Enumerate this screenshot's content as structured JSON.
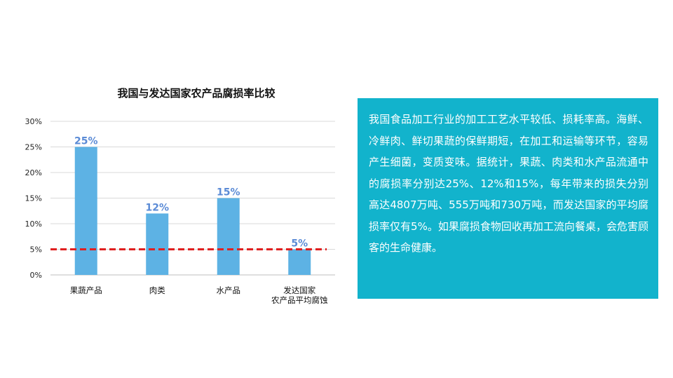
{
  "chart_data": {
    "type": "bar",
    "title": "我国与发达国家农产品腐损率比较",
    "categories": [
      [
        "果蔬产品"
      ],
      [
        "肉类"
      ],
      [
        "水产品"
      ],
      [
        "发达国家",
        "农产品平均腐蚀"
      ]
    ],
    "values": [
      25,
      12,
      15,
      5
    ],
    "data_labels": [
      "25%",
      "12%",
      "15%",
      "5%"
    ],
    "ylim": [
      0,
      30
    ],
    "yticks": [
      0,
      5,
      10,
      15,
      20,
      25,
      30
    ],
    "ytick_labels": [
      "0%",
      "5%",
      "10%",
      "15%",
      "20%",
      "25%",
      "30%"
    ],
    "grid": true,
    "reference_line": {
      "value": 5,
      "style": "dashed"
    },
    "colors": {
      "bar": "#5db2e4",
      "reference": "#e02020",
      "grid": "#d9d9d9",
      "data_label": "#5b8bd6"
    }
  },
  "panel": {
    "background": "#12b3cc",
    "text": "我国食品加工行业的加工工艺水平较低、损耗率高。海鲜、冷鲜肉、鲜切果蔬的保鲜期短，在加工和运输等环节，容易产生细菌，变质变味。据统计，果蔬、肉类和水产品流通中的腐损率分别达25%、12%和15%，每年带来的损失分别高达4807万吨、555万吨和730万吨，而发达国家的平均腐损率仅有5%。如果腐损食物回收再加工流向餐桌，会危害顾客的生命健康。"
  }
}
